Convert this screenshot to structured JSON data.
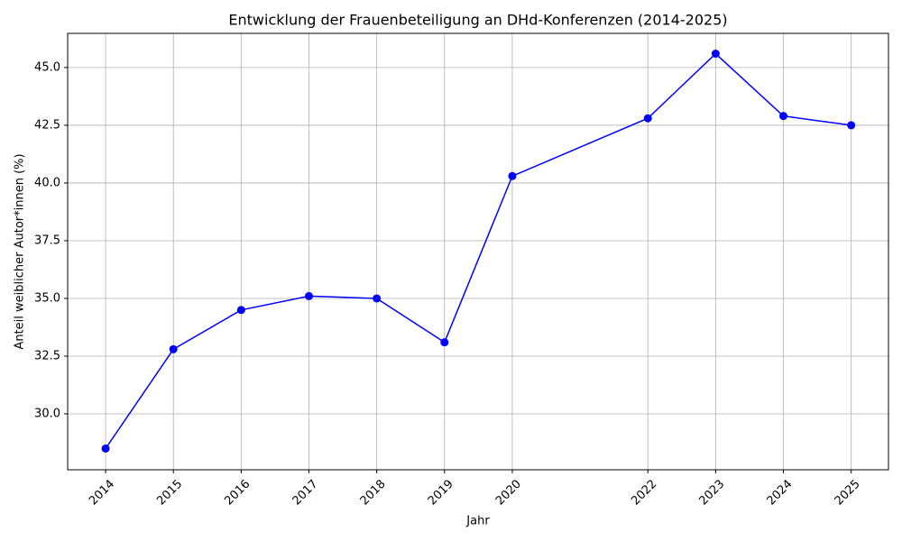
{
  "chart_data": {
    "type": "line",
    "title": "Entwicklung der Frauenbeteiligung an DHd-Konferenzen (2014-2025)",
    "x_label": "Jahr",
    "y_label": "Anteil weiblicher Autor*innen (%)",
    "x": [
      2014,
      2015,
      2016,
      2017,
      2018,
      2019,
      2020,
      2022,
      2023,
      2024,
      2025
    ],
    "series": [
      {
        "name": "Anteil weiblicher Autor*innen",
        "color": "#0000ff",
        "values": [
          28.5,
          32.8,
          34.5,
          35.1,
          35.0,
          33.1,
          40.3,
          42.8,
          45.6,
          42.9,
          42.5
        ]
      }
    ],
    "xlim": [
      2013.44,
      2025.55
    ],
    "ylim": [
      27.58,
      46.48
    ],
    "xticks": [
      2014,
      2015,
      2016,
      2017,
      2018,
      2019,
      2020,
      2022,
      2023,
      2024,
      2025
    ],
    "yticks": [
      {
        "value": 30,
        "label": "30.0"
      },
      32.5,
      {
        "value": 35,
        "label": "35.0"
      },
      37.5,
      {
        "value": 40,
        "label": "40.0"
      },
      42.5,
      {
        "value": 45,
        "label": "45.0"
      }
    ],
    "grid": true
  }
}
